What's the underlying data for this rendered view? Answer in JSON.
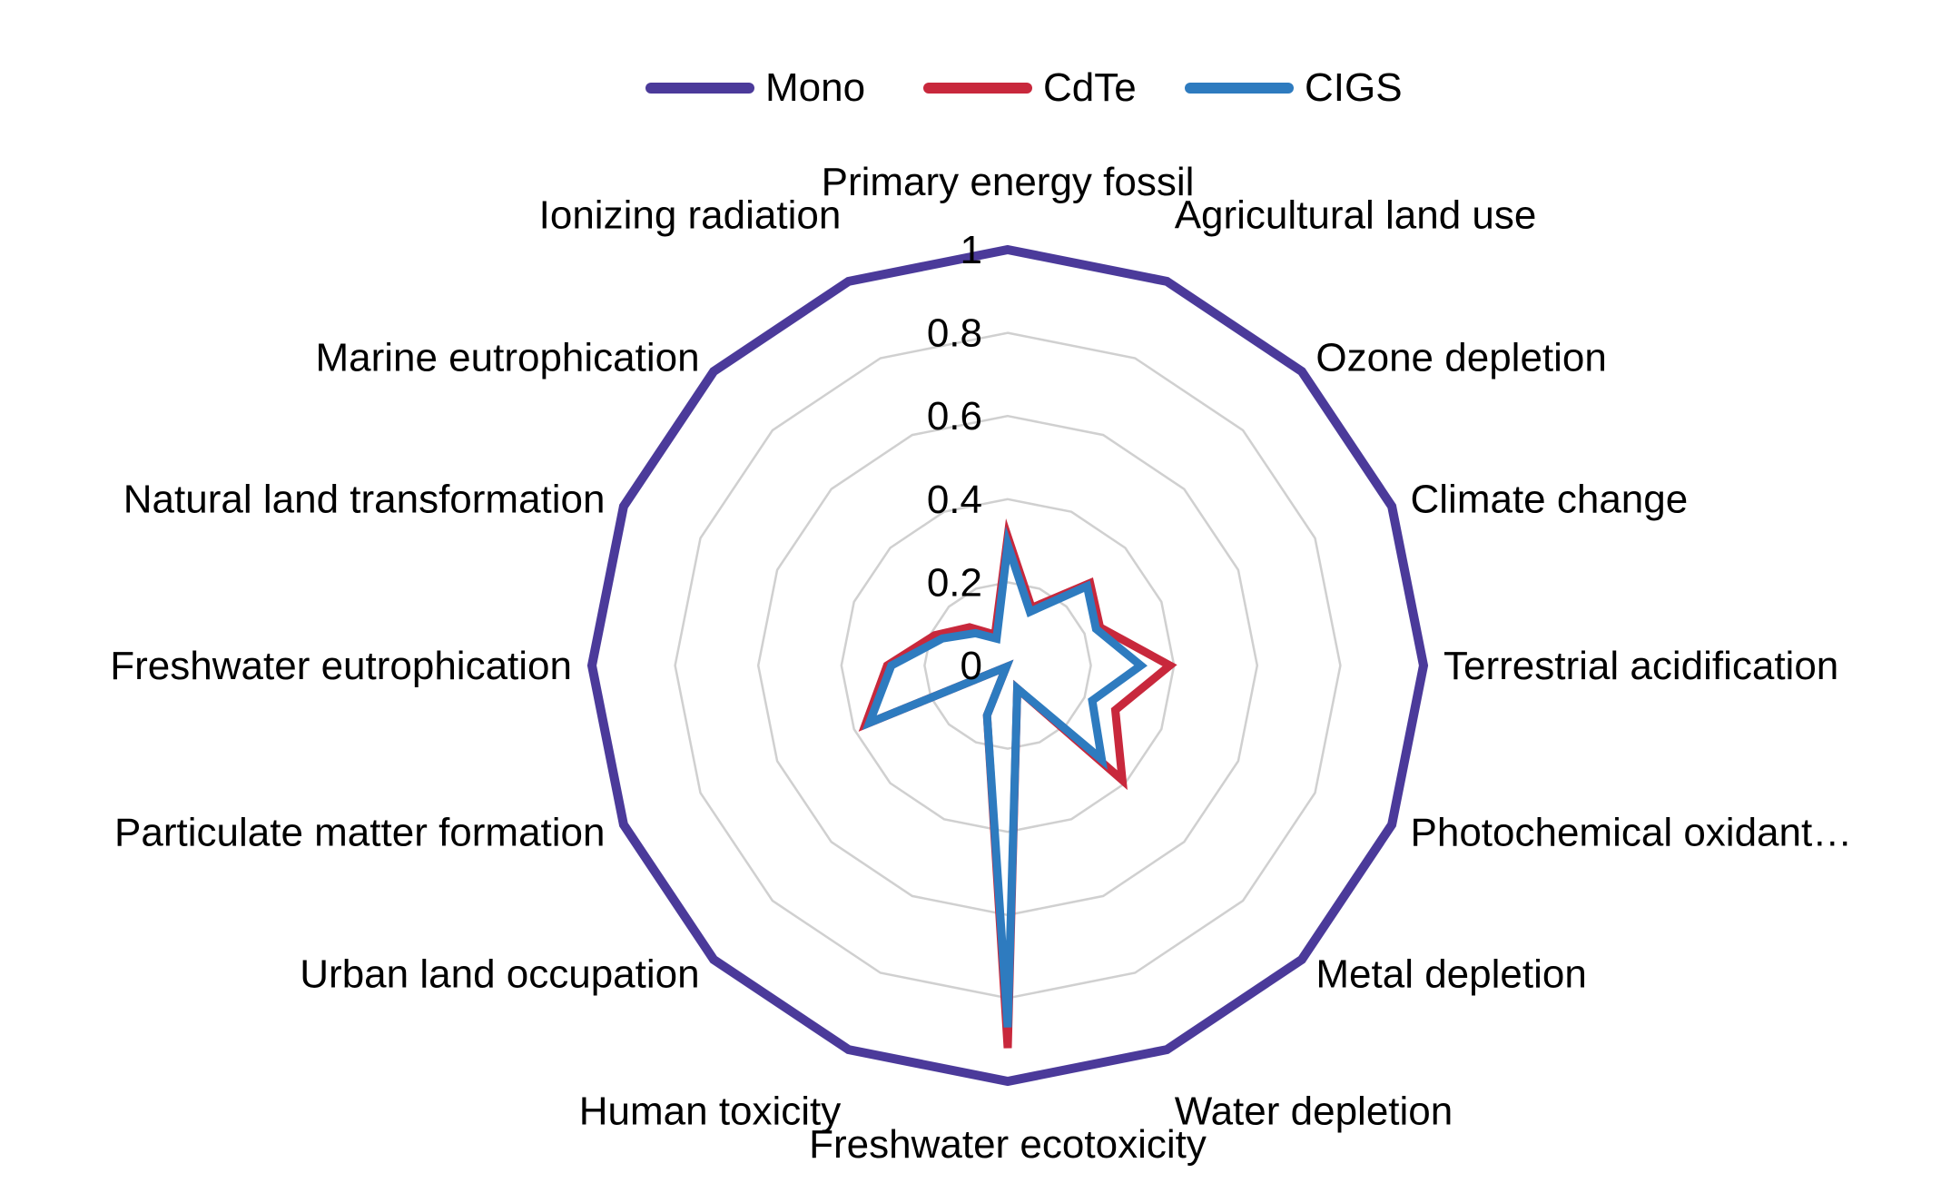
{
  "chart_data": {
    "type": "radar",
    "title": "",
    "legend_position": "top",
    "grid": true,
    "range": [
      0,
      1
    ],
    "ticks": [
      "0",
      "0.2",
      "0.4",
      "0.6",
      "0.8",
      "1"
    ],
    "tick_values": [
      0,
      0.2,
      0.4,
      0.6,
      0.8,
      1.0
    ],
    "categories": [
      "Primary energy fossil",
      "Agricultural land use",
      "Ozone depletion",
      "Climate change",
      "Terrestrial acidification",
      "Photochemical oxidant…",
      "Metal depletion",
      "Water depletion",
      "Freshwater ecotoxicity",
      "Human toxicity",
      "Urban land occupation",
      "Particulate matter formation",
      "Freshwater eutrophication",
      "Natural land transformation",
      "Marine eutrophication",
      "Ionizing radiation"
    ],
    "series": [
      {
        "name": "Mono",
        "color": "#4B3A9A",
        "values": [
          1,
          1,
          1,
          1,
          1,
          1,
          1,
          1,
          1,
          1,
          1,
          1,
          1,
          1,
          1,
          1
        ]
      },
      {
        "name": "CdTe",
        "color": "#C8283C",
        "values": [
          0.31,
          0.15,
          0.28,
          0.24,
          0.39,
          0.28,
          0.39,
          0.06,
          0.92,
          0.13,
          0.005,
          0.37,
          0.29,
          0.19,
          0.13,
          0.08
        ]
      },
      {
        "name": "CIGS",
        "color": "#2E7BBF",
        "values": [
          0.29,
          0.14,
          0.27,
          0.23,
          0.32,
          0.22,
          0.32,
          0.06,
          0.87,
          0.13,
          0.005,
          0.36,
          0.28,
          0.17,
          0.11,
          0.07
        ]
      }
    ]
  }
}
